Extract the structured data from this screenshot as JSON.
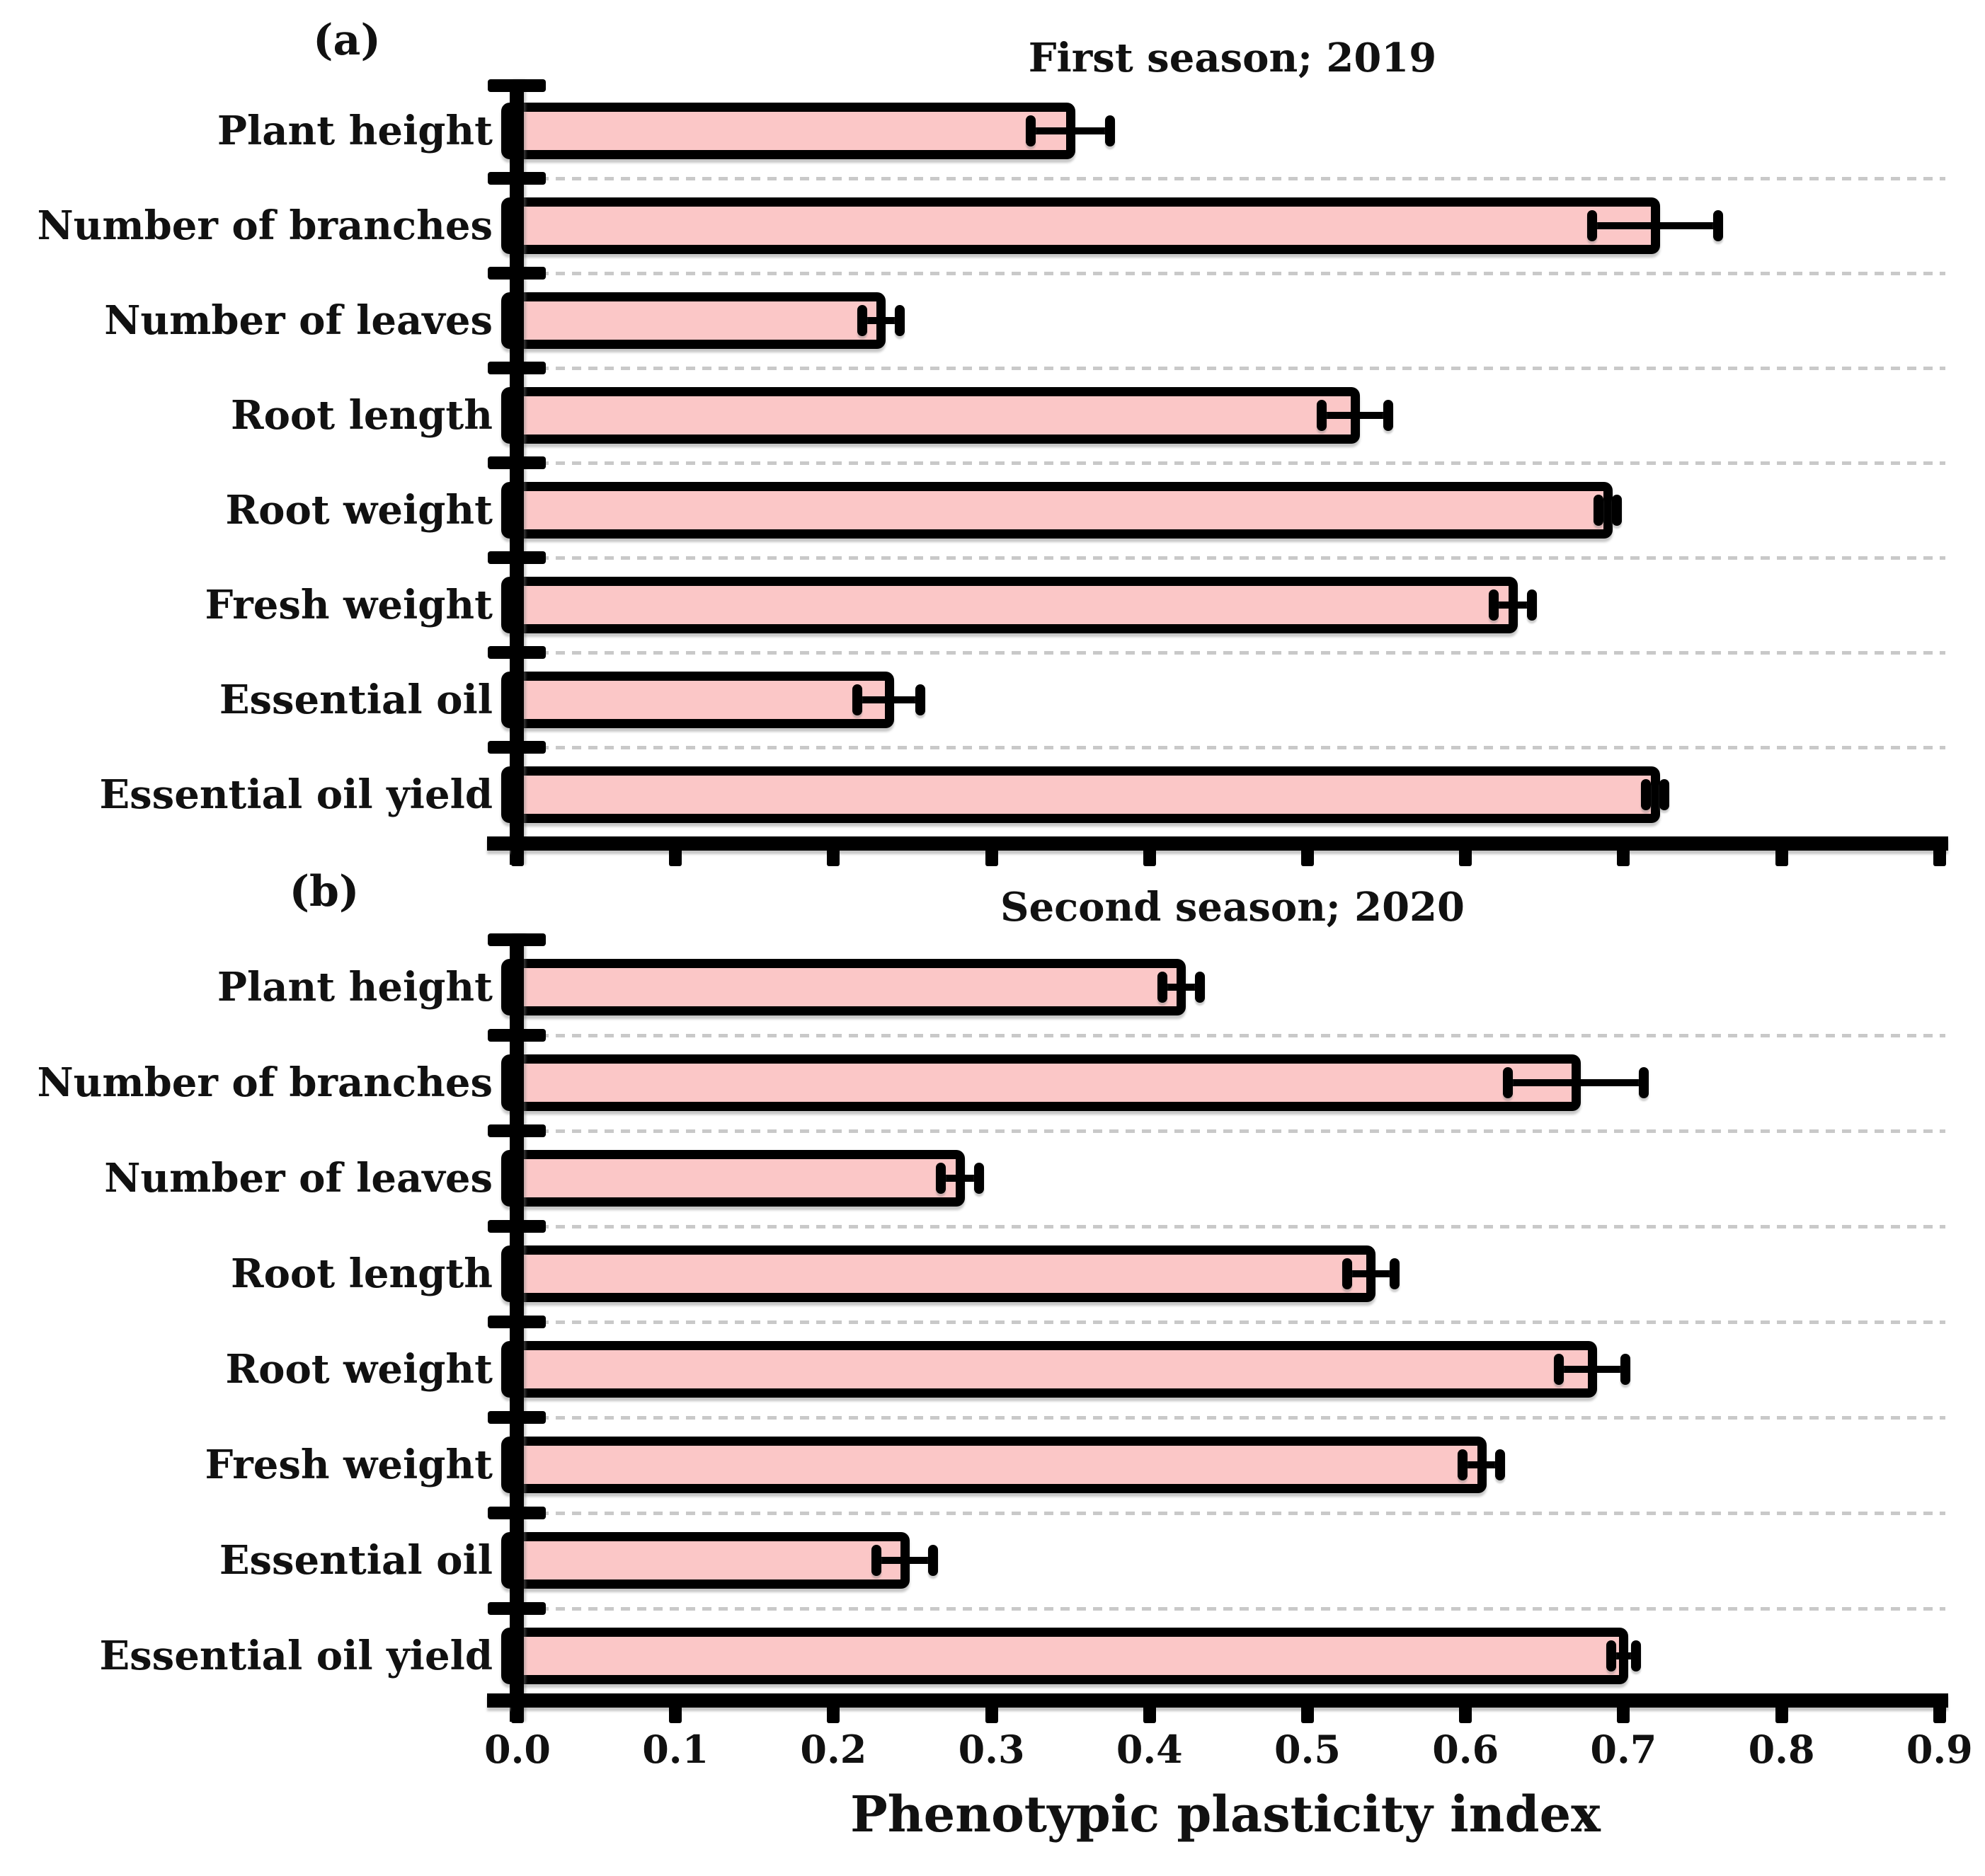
{
  "figure": {
    "panel_a_letter": "(a)",
    "panel_b_letter": "(b)"
  },
  "chart_data": [
    {
      "type": "bar",
      "orientation": "horizontal",
      "panel_label": "(a)",
      "title": "First season; 2019",
      "categories": [
        "Plant height",
        "Number of branches",
        "Number of leaves",
        "Root length",
        "Root weight",
        "Fresh weight",
        "Essential oil",
        "Essential oil yield"
      ],
      "values": [
        0.35,
        0.72,
        0.23,
        0.53,
        0.69,
        0.63,
        0.235,
        0.72
      ],
      "errors": [
        0.025,
        0.04,
        0.012,
        0.021,
        0.006,
        0.012,
        0.02,
        0.006
      ],
      "xlim": [
        0,
        0.9
      ],
      "xticks": [
        0.0,
        0.1,
        0.2,
        0.3,
        0.4,
        0.5,
        0.6,
        0.7,
        0.8,
        0.9
      ],
      "x_tick_labels_shown": false,
      "xlabel": "Phenotypic plasticity index",
      "grid": "dashed horizontal separators between categories",
      "legend": "none",
      "bar_fill": "#FBC7C7",
      "bar_border": "#000000",
      "gridline_color": "#c9c9c9"
    },
    {
      "type": "bar",
      "orientation": "horizontal",
      "panel_label": "(b)",
      "title": "Second season; 2020",
      "categories": [
        "Plant height",
        "Number of branches",
        "Number of leaves",
        "Root length",
        "Root weight",
        "Fresh weight",
        "Essential oil",
        "Essential oil yield"
      ],
      "values": [
        0.42,
        0.67,
        0.28,
        0.54,
        0.68,
        0.61,
        0.245,
        0.7
      ],
      "errors": [
        0.012,
        0.043,
        0.012,
        0.015,
        0.021,
        0.012,
        0.018,
        0.008
      ],
      "xlim": [
        0,
        0.9
      ],
      "xticks": [
        0.0,
        0.1,
        0.2,
        0.3,
        0.4,
        0.5,
        0.6,
        0.7,
        0.8,
        0.9
      ],
      "x_tick_labels_shown": true,
      "x_tick_labels": [
        "0.0",
        "0.1",
        "0.2",
        "0.3",
        "0.4",
        "0.5",
        "0.6",
        "0.7",
        "0.8",
        "0.9"
      ],
      "xlabel": "Phenotypic plasticity index",
      "grid": "dashed horizontal separators between categories",
      "legend": "none",
      "bar_fill": "#FBC7C7",
      "bar_border": "#000000",
      "gridline_color": "#c9c9c9"
    }
  ]
}
